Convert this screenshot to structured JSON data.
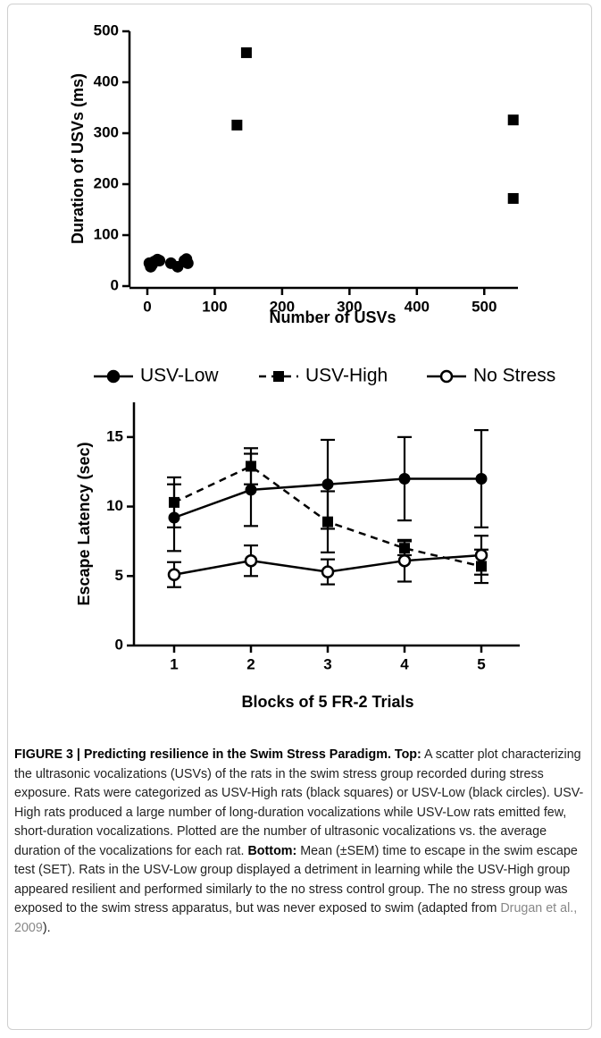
{
  "chart_data": [
    {
      "type": "scatter",
      "xlabel": "Number of USVs",
      "ylabel": "Duration of USVs (ms)",
      "xlim": [
        0,
        550
      ],
      "ylim": [
        0,
        500
      ],
      "xticks": [
        0,
        100,
        200,
        300,
        400,
        500
      ],
      "yticks": [
        0,
        100,
        200,
        300,
        400,
        500
      ],
      "series": [
        {
          "marker": "circle",
          "color": "#000000",
          "x": [
            3,
            5,
            7,
            10,
            15,
            18,
            35,
            45,
            55,
            58,
            60
          ],
          "values": [
            45,
            38,
            42,
            48,
            52,
            50,
            45,
            38,
            50,
            53,
            45
          ]
        },
        {
          "marker": "square",
          "color": "#000000",
          "x": [
            133,
            147,
            543,
            543
          ],
          "values": [
            316,
            458,
            326,
            172
          ]
        }
      ]
    },
    {
      "type": "line",
      "xlabel": "Blocks of 5 FR-2 Trials",
      "ylabel": "Escape Latency (sec)",
      "xlim": [
        0.5,
        5.5
      ],
      "ylim": [
        0,
        17.5
      ],
      "xticks": [
        1,
        2,
        3,
        4,
        5
      ],
      "yticks": [
        0,
        5,
        10,
        15
      ],
      "x": [
        1,
        2,
        3,
        4,
        5
      ],
      "series": [
        {
          "name": "USV-Low",
          "marker": "circle",
          "dashed": false,
          "color": "#000000",
          "values": [
            9.2,
            11.2,
            11.6,
            12.0,
            12.0
          ],
          "errors": [
            2.4,
            2.6,
            3.2,
            3.0,
            3.5
          ]
        },
        {
          "name": "USV-High",
          "marker": "square",
          "dashed": true,
          "color": "#000000",
          "values": [
            10.3,
            12.9,
            8.9,
            7.0,
            5.7
          ],
          "errors": [
            1.8,
            1.3,
            2.2,
            0.5,
            1.2
          ]
        },
        {
          "name": "No Stress",
          "marker": "open-circle",
          "dashed": false,
          "color": "#000000",
          "values": [
            5.1,
            6.1,
            5.3,
            6.1,
            6.5
          ],
          "errors": [
            0.9,
            1.1,
            0.9,
            1.5,
            1.4
          ]
        }
      ]
    }
  ],
  "caption": {
    "heading": "FIGURE 3 | Predicting resilience in the Swim Stress Paradigm. Top:",
    "text1": "A scatter plot characterizing the ultrasonic vocalizations (USVs) of the rats in the swim stress group recorded during stress exposure. Rats were categorized as USV-High rats (black squares) or USV-Low (black circles). USV-High rats produced a large number of long-duration vocalizations while USV-Low rats emitted few, short-duration vocalizations. Plotted are the number of ultrasonic vocalizations vs. the average duration of the vocalizations for each rat.",
    "bottom": "Bottom:",
    "text2": "Mean (±SEM) time to escape in the swim escape test (SET). Rats in the USV-Low group displayed a detriment in learning while the USV-High group appeared resilient and performed similarly to the no stress control group. The no stress group was exposed to the swim stress apparatus, but was never exposed to swim (adapted from",
    "reference": "Drugan et al., 2009",
    "end": ")."
  }
}
